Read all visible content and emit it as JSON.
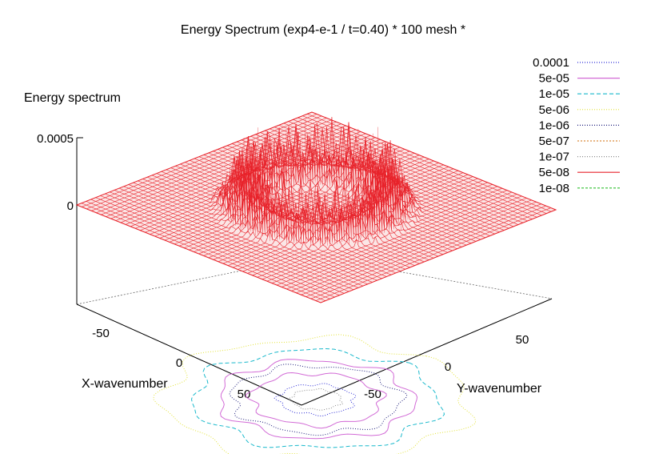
{
  "chart_data": {
    "type": "surface3d",
    "title": "Energy Spectrum (exp4-e-1 / t=0.40) * 100 mesh *",
    "zlabel": "Energy spectrum",
    "xlabel": "X-wavenumber",
    "ylabel": "Y-wavenumber",
    "mesh": 100,
    "xlim": [
      -80,
      80
    ],
    "ylim": [
      -80,
      80
    ],
    "zlim": [
      0,
      0.0005
    ],
    "z_ticks": [
      {
        "value": 0,
        "label": "0"
      },
      {
        "value": 0.0005,
        "label": "0.0005"
      }
    ],
    "x_ticks": [
      {
        "value": -50,
        "label": "-50"
      },
      {
        "value": 0,
        "label": "0"
      },
      {
        "value": 50,
        "label": "50"
      }
    ],
    "y_ticks": [
      {
        "value": -50,
        "label": "-50"
      },
      {
        "value": 0,
        "label": "0"
      },
      {
        "value": 50,
        "label": "50"
      }
    ],
    "surface": {
      "color": "#e8232b",
      "ring_inner_radius": 25,
      "ring_outer_radius": 45,
      "max_value": 0.0005
    },
    "contour_levels": [
      {
        "label": "0.0001",
        "color": "#2b2bd6",
        "dash": "1,2"
      },
      {
        "label": "5e-05",
        "color": "#d26bd6",
        "dash": ""
      },
      {
        "label": "1e-05",
        "color": "#19b9cc",
        "dash": "5,3"
      },
      {
        "label": "5e-06",
        "color": "#e3e33a",
        "dash": "1,2"
      },
      {
        "label": "1e-06",
        "color": "#1c1c7a",
        "dash": "1,2"
      },
      {
        "label": "5e-07",
        "color": "#d98a3a",
        "dash": "2,2"
      },
      {
        "label": "1e-07",
        "color": "#8a8a8a",
        "dash": "1,2"
      },
      {
        "label": "5e-08",
        "color": "#e8232b",
        "dash": ""
      },
      {
        "label": "1e-08",
        "color": "#2fbf2f",
        "dash": "3,2"
      }
    ]
  }
}
